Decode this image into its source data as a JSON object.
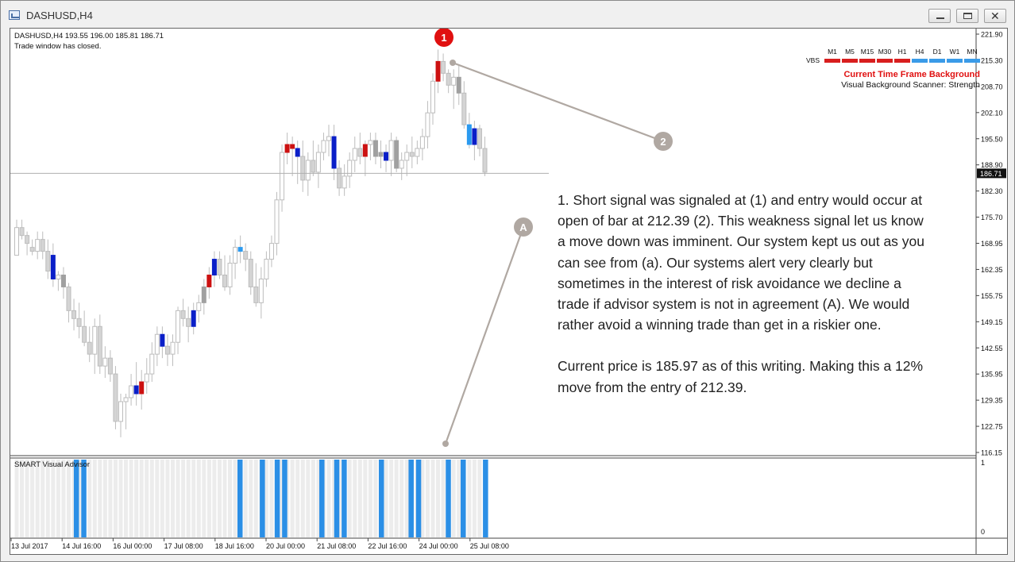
{
  "window": {
    "title": "DASHUSD,H4"
  },
  "chart": {
    "symbol_line": "DASHUSD,H4  193.55 196.00 185.81 186.71",
    "status_line": "Trade window has closed.",
    "current_price_label": "186.71",
    "price_axis": [
      "221.90",
      "215.30",
      "208.70",
      "202.10",
      "195.50",
      "188.90",
      "182.30",
      "175.70",
      "168.95",
      "162.35",
      "155.75",
      "149.15",
      "142.55",
      "135.95",
      "129.35",
      "122.75",
      "116.15"
    ],
    "time_axis": [
      "13 Jul 2017",
      "14 Jul 16:00",
      "16 Jul 00:00",
      "17 Jul 08:00",
      "18 Jul 16:00",
      "20 Jul 00:00",
      "21 Jul 08:00",
      "22 Jul 16:00",
      "24 Jul 00:00",
      "25 Jul 08:00"
    ],
    "markers": {
      "m1": "1",
      "m2": "2",
      "mA": "A"
    },
    "colors": {
      "bull_bar": "#c8c8c8",
      "bear_bar": "#a0a0a0",
      "signal_red": "#cc1111",
      "signal_blue": "#0a1fc8",
      "light_blue": "#2b9af0",
      "marker_red": "#e01010",
      "marker_gray": "#b0a8a2"
    }
  },
  "chart_data": {
    "type": "candlestick",
    "ohlc_header": {
      "open": 193.55,
      "high": 196.0,
      "low": 185.81,
      "close": 186.71
    },
    "ylim": [
      116.15,
      221.9
    ],
    "candles": [
      [
        166,
        175,
        166,
        173
      ],
      [
        173,
        175,
        170,
        171
      ],
      [
        171,
        172,
        166,
        169
      ],
      [
        168,
        170,
        166,
        167
      ],
      [
        167,
        172,
        165,
        170
      ],
      [
        170,
        172,
        165,
        167
      ],
      [
        167,
        170,
        160,
        162
      ],
      [
        166,
        169,
        158,
        160
      ],
      [
        160,
        162,
        157,
        161
      ],
      [
        161,
        163,
        155,
        158
      ],
      [
        158,
        159,
        149,
        152
      ],
      [
        152,
        155,
        147,
        150
      ],
      [
        150,
        154,
        145,
        148
      ],
      [
        148,
        152,
        143,
        144
      ],
      [
        144,
        148,
        139,
        141
      ],
      [
        141,
        150,
        136,
        148
      ],
      [
        148,
        151,
        136,
        138
      ],
      [
        138,
        143,
        135,
        140
      ],
      [
        140,
        142,
        134,
        136
      ],
      [
        136,
        138,
        122,
        124
      ],
      [
        124,
        131,
        120,
        129
      ],
      [
        129,
        131,
        122,
        130
      ],
      [
        130,
        136,
        128,
        133
      ],
      [
        133,
        139,
        128,
        131
      ],
      [
        131,
        137,
        127,
        134
      ],
      [
        134,
        140,
        131,
        136
      ],
      [
        136,
        144,
        134,
        141
      ],
      [
        141,
        148,
        138,
        146
      ],
      [
        146,
        148,
        140,
        143
      ],
      [
        143,
        146,
        138,
        141
      ],
      [
        141,
        146,
        138,
        144
      ],
      [
        144,
        153,
        141,
        152
      ],
      [
        152,
        155,
        148,
        150
      ],
      [
        150,
        153,
        144,
        148
      ],
      [
        148,
        154,
        146,
        152
      ],
      [
        152,
        156,
        149,
        154
      ],
      [
        154,
        160,
        151,
        158
      ],
      [
        158,
        163,
        155,
        161
      ],
      [
        161,
        167,
        158,
        165
      ],
      [
        165,
        167,
        160,
        161
      ],
      [
        161,
        166,
        157,
        158
      ],
      [
        158,
        166,
        156,
        164
      ],
      [
        164,
        170,
        160,
        168
      ],
      [
        168,
        171,
        164,
        167
      ],
      [
        167,
        169,
        162,
        165
      ],
      [
        165,
        167,
        156,
        158
      ],
      [
        158,
        164,
        153,
        154
      ],
      [
        154,
        163,
        150,
        160
      ],
      [
        160,
        167,
        158,
        165
      ],
      [
        165,
        171,
        163,
        169
      ],
      [
        169,
        182,
        166,
        180
      ],
      [
        180,
        194,
        177,
        192
      ],
      [
        192,
        197,
        189,
        194
      ],
      [
        194,
        196,
        186,
        193
      ],
      [
        193,
        195,
        184,
        191
      ],
      [
        191,
        195,
        182,
        185
      ],
      [
        185,
        192,
        181,
        190
      ],
      [
        190,
        195,
        186,
        187
      ],
      [
        187,
        194,
        183,
        192
      ],
      [
        192,
        197,
        190,
        195
      ],
      [
        195,
        199,
        191,
        196
      ],
      [
        196,
        199,
        185,
        188
      ],
      [
        188,
        190,
        181,
        183
      ],
      [
        183,
        189,
        181,
        186
      ],
      [
        186,
        192,
        183,
        190
      ],
      [
        190,
        196,
        187,
        193
      ],
      [
        193,
        197,
        189,
        191
      ],
      [
        191,
        195,
        186,
        194
      ],
      [
        194,
        197,
        190,
        195
      ],
      [
        195,
        197,
        189,
        191
      ],
      [
        191,
        195,
        188,
        192
      ],
      [
        192,
        194,
        187,
        190
      ],
      [
        190,
        197,
        186,
        195
      ],
      [
        195,
        196,
        187,
        188
      ],
      [
        188,
        192,
        185,
        190
      ],
      [
        190,
        194,
        186,
        192
      ],
      [
        192,
        196,
        188,
        191
      ],
      [
        191,
        195,
        189,
        193
      ],
      [
        193,
        198,
        190,
        196
      ],
      [
        196,
        205,
        193,
        202
      ],
      [
        202,
        212,
        199,
        210
      ],
      [
        210,
        218,
        207,
        215
      ],
      [
        215,
        217,
        210,
        212
      ],
      [
        212,
        213,
        207,
        209
      ],
      [
        209,
        213,
        203,
        211
      ],
      [
        211,
        214,
        204,
        207
      ],
      [
        207,
        210,
        198,
        199
      ],
      [
        199,
        202,
        193,
        194
      ],
      [
        194,
        200,
        190,
        198
      ],
      [
        198,
        199,
        191,
        193
      ],
      [
        193,
        196,
        186,
        187
      ]
    ],
    "signals": [
      {
        "index": 7,
        "color": "blue"
      },
      {
        "index": 9,
        "color": "gray"
      },
      {
        "index": 23,
        "color": "blue"
      },
      {
        "index": 24,
        "color": "red"
      },
      {
        "index": 28,
        "color": "blue"
      },
      {
        "index": 34,
        "color": "blue"
      },
      {
        "index": 36,
        "color": "gray"
      },
      {
        "index": 37,
        "color": "red"
      },
      {
        "index": 38,
        "color": "blue"
      },
      {
        "index": 43,
        "color": "lightblue"
      },
      {
        "index": 52,
        "color": "red"
      },
      {
        "index": 53,
        "color": "red"
      },
      {
        "index": 54,
        "color": "blue"
      },
      {
        "index": 61,
        "color": "blue"
      },
      {
        "index": 67,
        "color": "red"
      },
      {
        "index": 69,
        "color": "gray"
      },
      {
        "index": 70,
        "color": "gray"
      },
      {
        "index": 71,
        "color": "blue"
      },
      {
        "index": 73,
        "color": "gray"
      },
      {
        "index": 81,
        "color": "red"
      },
      {
        "index": 85,
        "color": "gray"
      },
      {
        "index": 87,
        "color": "lightblue"
      },
      {
        "index": 88,
        "color": "blue"
      }
    ],
    "subwindow": {
      "label": "SMART Visual Advisor",
      "scale_max": "1",
      "scale_min": "0",
      "active_bars": [
        8,
        9,
        30,
        33,
        35,
        36,
        41,
        43,
        44,
        49,
        53,
        54,
        58,
        60,
        63
      ]
    }
  },
  "annotation": {
    "paragraph1": "1. Short signal was signaled at (1) and entry would occur at open of bar at 212.39 (2). This weakness signal let us know a move down was imminent.  Our system kept us out as you can see from (a).  Our systems alert very clearly but sometimes in the interest of risk avoidance we decline a trade if advisor system is not in agreement (A).  We would rather avoid a winning trade than get in a riskier one.",
    "paragraph2": "Current price is 185.97 as of this writing. Making this a 12% move from the entry of 212.39."
  },
  "vbs": {
    "row_label": "VBS",
    "timeframes": [
      "M1",
      "M5",
      "M15",
      "M30",
      "H1",
      "H4",
      "D1",
      "W1",
      "MN"
    ],
    "colors": [
      "#d81e1e",
      "#d81e1e",
      "#d81e1e",
      "#d81e1e",
      "#d81e1e",
      "#3a9be8",
      "#3a9be8",
      "#3a9be8",
      "#3a9be8"
    ],
    "title": "Current Time Frame Background",
    "subtitle": "Visual Background Scanner: Strength"
  }
}
